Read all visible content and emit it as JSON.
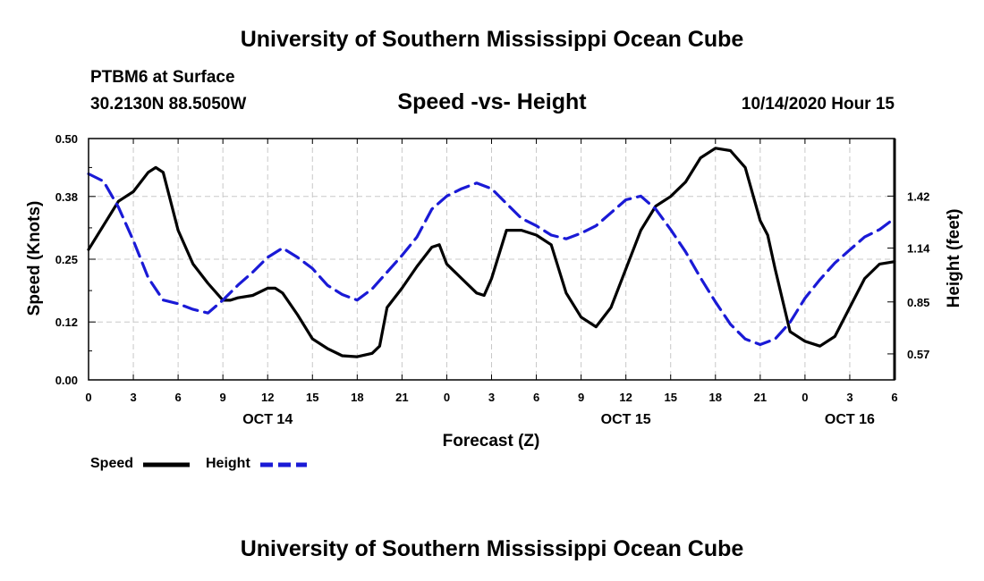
{
  "page": {
    "title_top": "University of Southern Mississippi Ocean Cube",
    "title_bottom": "University of Southern Mississippi Ocean Cube",
    "station": "PTBM6 at Surface",
    "coords": "30.2130N 88.5050W",
    "timestamp": "10/14/2020 Hour 15"
  },
  "chart_data": {
    "type": "line",
    "title": "Speed -vs- Height",
    "xlabel": "Forecast (Z)",
    "ylabel_left": "Speed (Knots)",
    "ylabel_right": "Height (feet)",
    "x_range": [
      0,
      54
    ],
    "x_tick_hours": [
      0,
      3,
      6,
      9,
      12,
      15,
      18,
      21,
      24,
      27,
      30,
      33,
      36,
      39,
      42,
      45,
      48,
      51,
      54
    ],
    "x_tick_labels": [
      "0",
      "3",
      "6",
      "9",
      "12",
      "15",
      "18",
      "21",
      "0",
      "3",
      "6",
      "9",
      "12",
      "15",
      "18",
      "21",
      "0",
      "3",
      "6"
    ],
    "date_labels": [
      {
        "hour": 12,
        "text": "OCT 14"
      },
      {
        "hour": 36,
        "text": "OCT 15"
      },
      {
        "hour": 51,
        "text": "OCT 16"
      }
    ],
    "ylim_left": [
      0,
      0.5
    ],
    "y_ticks_left": [
      0,
      0.12,
      0.25,
      0.38,
      0.5
    ],
    "y_tick_labels_left": [
      "0.00",
      "0.12",
      "0.25",
      "0.38",
      "0.50"
    ],
    "ylim_right": [
      0.43,
      1.73
    ],
    "y_ticks_right": [
      0.57,
      0.85,
      1.14,
      1.42
    ],
    "y_tick_labels_right": [
      "0.57",
      "0.85",
      "1.14",
      "1.42"
    ],
    "grid": true,
    "legend_position": "bottom-left",
    "series": [
      {
        "name": "Speed",
        "axis": "left",
        "color": "#000000",
        "dash": "solid",
        "x": [
          0,
          1,
          2,
          3,
          4,
          4.5,
          5,
          6,
          7,
          8,
          9,
          9.5,
          10,
          11,
          12,
          12.5,
          13,
          14,
          15,
          16,
          17,
          18,
          19,
          19.5,
          20,
          21,
          22,
          23,
          23.5,
          24,
          25,
          26,
          26.5,
          27,
          28,
          29,
          30,
          31,
          32,
          33,
          34,
          35,
          36,
          37,
          38,
          39,
          40,
          41,
          42,
          43,
          44,
          45,
          45.5,
          46,
          47,
          48,
          49,
          50,
          51,
          52,
          53,
          54
        ],
        "values": [
          0.27,
          0.32,
          0.37,
          0.39,
          0.43,
          0.44,
          0.43,
          0.31,
          0.24,
          0.2,
          0.165,
          0.165,
          0.17,
          0.175,
          0.19,
          0.19,
          0.18,
          0.135,
          0.085,
          0.065,
          0.05,
          0.048,
          0.055,
          0.07,
          0.15,
          0.19,
          0.235,
          0.275,
          0.28,
          0.24,
          0.21,
          0.18,
          0.175,
          0.21,
          0.31,
          0.31,
          0.3,
          0.28,
          0.18,
          0.13,
          0.11,
          0.15,
          0.23,
          0.31,
          0.36,
          0.38,
          0.41,
          0.46,
          0.48,
          0.475,
          0.44,
          0.33,
          0.3,
          0.23,
          0.1,
          0.08,
          0.07,
          0.09,
          0.15,
          0.21,
          0.24,
          0.245
        ]
      },
      {
        "name": "Height",
        "axis": "right",
        "color": "#1a1ad6",
        "dash": "dashed",
        "x": [
          0,
          1,
          2,
          3,
          4,
          5,
          6,
          7,
          8,
          9,
          10,
          11,
          12,
          13,
          14,
          15,
          16,
          17,
          18,
          19,
          20,
          21,
          22,
          23,
          24,
          25,
          26,
          27,
          28,
          29,
          30,
          31,
          32,
          33,
          34,
          35,
          36,
          37,
          38,
          39,
          40,
          41,
          42,
          43,
          44,
          45,
          46,
          47,
          48,
          49,
          50,
          51,
          52,
          53,
          54
        ],
        "values": [
          1.54,
          1.5,
          1.36,
          1.18,
          0.98,
          0.86,
          0.84,
          0.81,
          0.79,
          0.86,
          0.94,
          1.01,
          1.09,
          1.14,
          1.09,
          1.03,
          0.94,
          0.89,
          0.86,
          0.92,
          1.01,
          1.1,
          1.2,
          1.35,
          1.42,
          1.46,
          1.49,
          1.46,
          1.38,
          1.3,
          1.26,
          1.21,
          1.19,
          1.22,
          1.26,
          1.33,
          1.4,
          1.42,
          1.35,
          1.24,
          1.12,
          0.98,
          0.85,
          0.73,
          0.65,
          0.62,
          0.65,
          0.74,
          0.87,
          0.97,
          1.06,
          1.13,
          1.2,
          1.24,
          1.3
        ]
      }
    ]
  }
}
